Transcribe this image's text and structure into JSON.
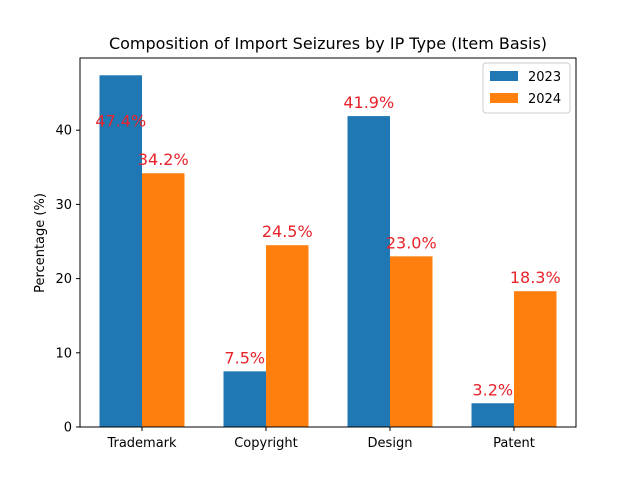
{
  "chart_data": {
    "type": "bar",
    "title": "Composition of Import Seizures by IP Type (Item Basis)",
    "xlabel": "",
    "ylabel": "Percentage (%)",
    "categories": [
      "Trademark",
      "Copyright",
      "Design",
      "Patent"
    ],
    "ylim": [
      0,
      50
    ],
    "yticks": [
      0,
      10,
      20,
      30,
      40
    ],
    "grid": false,
    "legend_position": "top-right",
    "series": [
      {
        "name": "2023",
        "color": "#1f77b4",
        "values": [
          47.4,
          7.5,
          41.9,
          3.2
        ],
        "labels": [
          "47.4%",
          "7.5%",
          "41.9%",
          "3.2%"
        ]
      },
      {
        "name": "2024",
        "color": "#ff7f0e",
        "values": [
          34.2,
          24.5,
          23.0,
          18.3
        ],
        "labels": [
          "34.2%",
          "24.5%",
          "23.0%",
          "18.3%"
        ]
      }
    ],
    "data_label_color": "#e8232a"
  }
}
